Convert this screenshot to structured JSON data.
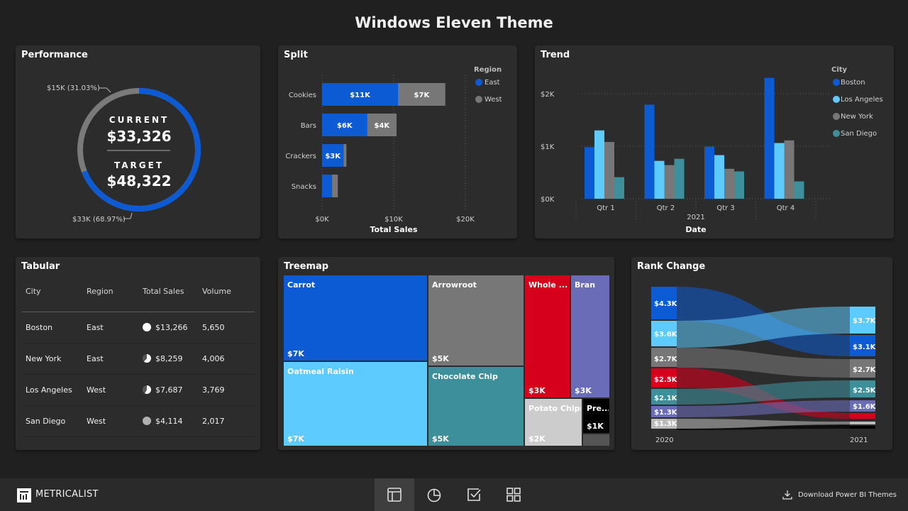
{
  "page_title": "Windows Eleven Theme",
  "colors": {
    "east": "#0d5bd4",
    "west": "#777777",
    "boston": "#0d5bd4",
    "los_angeles": "#5ecbff",
    "new_york": "#777777",
    "san_diego": "#3d8f9c"
  },
  "performance": {
    "title": "Performance",
    "current_label": "CURRENT",
    "current_value": "$33,326",
    "target_label": "TARGET",
    "target_value": "$48,322",
    "remaining_label": "$15K (31.03%)",
    "achieved_label": "$33K (68.97%)",
    "achieved_fraction": 0.6897
  },
  "split": {
    "title": "Split",
    "legend_title": "Region",
    "chart_data": {
      "type": "bar",
      "orientation": "horizontal",
      "stacked": true,
      "categories": [
        "Cookies",
        "Bars",
        "Crackers",
        "Snacks"
      ],
      "series": [
        {
          "name": "East",
          "values": [
            10.6,
            6.3,
            3.0,
            1.4
          ],
          "labels": [
            "$11K",
            "$6K",
            "$3K",
            ""
          ]
        },
        {
          "name": "West",
          "values": [
            6.6,
            4.1,
            0.4,
            0.8
          ],
          "labels": [
            "$7K",
            "$4K",
            "",
            ""
          ]
        }
      ],
      "xlabel": "Total Sales",
      "xticks": [
        "$0K",
        "$10K",
        "$20K"
      ],
      "xlim": [
        0,
        20
      ],
      "legend_position": "top-right"
    }
  },
  "trend": {
    "title": "Trend",
    "legend_title": "City",
    "chart_data": {
      "type": "bar",
      "categories": [
        "Qtr 1",
        "Qtr 2",
        "Qtr 3",
        "Qtr 4"
      ],
      "series": [
        {
          "name": "Boston",
          "values": [
            980,
            1790,
            990,
            2300
          ]
        },
        {
          "name": "Los Angeles",
          "values": [
            1300,
            720,
            830,
            1060
          ]
        },
        {
          "name": "New York",
          "values": [
            1080,
            640,
            570,
            1110
          ]
        },
        {
          "name": "San Diego",
          "values": [
            410,
            760,
            520,
            330
          ]
        }
      ],
      "yticks": [
        "$0K",
        "$1K",
        "$2K"
      ],
      "ylim": [
        0,
        2350
      ],
      "xgroup_label": "2021",
      "xlabel": "Date",
      "legend_position": "top-right"
    }
  },
  "tabular": {
    "title": "Tabular",
    "columns": [
      "City",
      "Region",
      "Total Sales",
      "Volume"
    ],
    "rows": [
      {
        "city": "Boston",
        "region": "East",
        "sales": "$13,266",
        "volume": "5,650",
        "pie_fraction": 1.0
      },
      {
        "city": "New York",
        "region": "East",
        "sales": "$8,259",
        "volume": "4,006",
        "pie_fraction": 0.62
      },
      {
        "city": "Los Angeles",
        "region": "West",
        "sales": "$7,687",
        "volume": "3,769",
        "pie_fraction": 0.58
      },
      {
        "city": "San Diego",
        "region": "West",
        "sales": "$4,114",
        "volume": "2,017",
        "pie_fraction": 0.31
      }
    ]
  },
  "treemap": {
    "title": "Treemap",
    "items": [
      {
        "name": "Carrot",
        "value": "$7K",
        "color": "#0d5bd4"
      },
      {
        "name": "Oatmeal Raisin",
        "value": "$7K",
        "color": "#5ecbff"
      },
      {
        "name": "Arrowroot",
        "value": "$5K",
        "color": "#777777"
      },
      {
        "name": "Chocolate Chip",
        "value": "$5K",
        "color": "#3d8f9c"
      },
      {
        "name": "Whole ...",
        "value": "$3K",
        "color": "#d6001c"
      },
      {
        "name": "Bran",
        "value": "$3K",
        "color": "#6a6cb8"
      },
      {
        "name": "Potato Chips",
        "value": "$2K",
        "color": "#cccccc"
      },
      {
        "name": "Pre...",
        "value": "$1K",
        "color": "#000000"
      }
    ]
  },
  "rank_change": {
    "title": "Rank Change",
    "year_start": "2020",
    "year_end": "2021",
    "left_labels": [
      "$4.3K",
      "$3.6K",
      "$2.7K",
      "$2.5K",
      "$2.1K",
      "$1.3K",
      "$1.3K"
    ],
    "right_labels": [
      "$3.7K",
      "$3.1K",
      "$2.7K",
      "$2.5K",
      "$1.6K"
    ]
  },
  "footer": {
    "brand": "METRICALIST",
    "download_label": "Download Power BI Themes",
    "nav": [
      "layout-icon",
      "pie-icon",
      "check-icon",
      "grid-icon"
    ]
  }
}
